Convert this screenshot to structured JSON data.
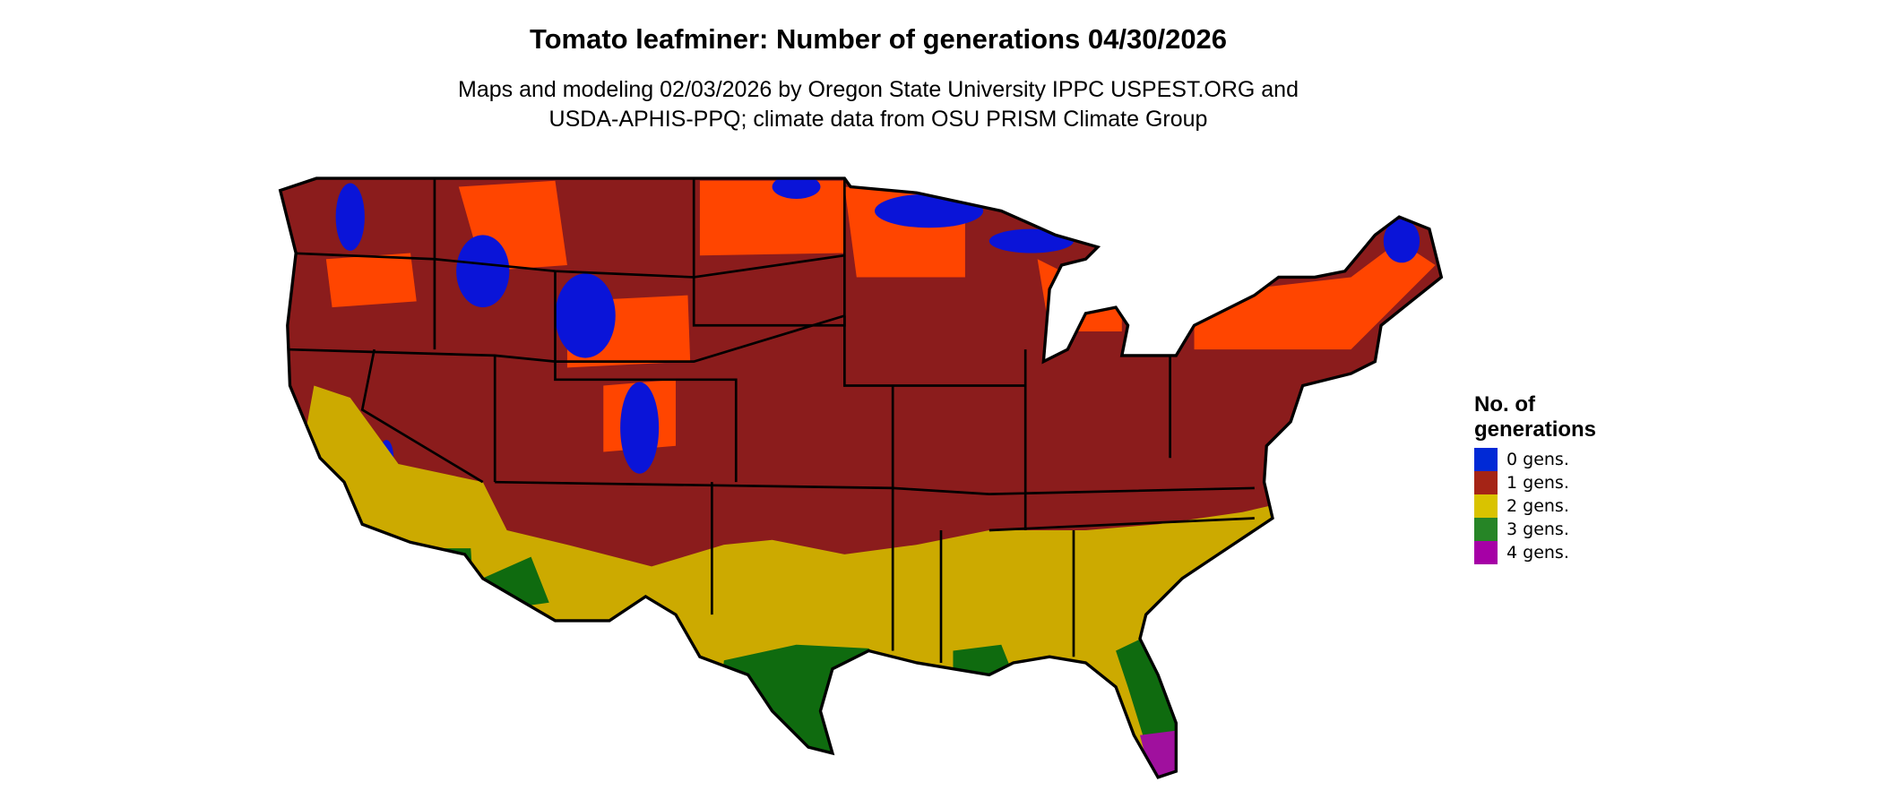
{
  "title": "Tomato leafminer: Number of generations 04/30/2026",
  "subtitle_line1": "Maps and modeling 02/03/2026 by Oregon State University IPPC USPEST.ORG and",
  "subtitle_line2": "USDA-APHIS-PPQ; climate data from OSU PRISM Climate Group",
  "legend": {
    "title_line1": "No. of",
    "title_line2": "generations",
    "items": [
      {
        "label": "0 gens.",
        "color": "#0029d6"
      },
      {
        "label": "1 gens.",
        "color": "#a52416"
      },
      {
        "label": "2 gens.",
        "color": "#d9c300"
      },
      {
        "label": "3 gens.",
        "color": "#268526"
      },
      {
        "label": "4 gens.",
        "color": "#a600a6"
      }
    ]
  },
  "map_colors": {
    "base_1gen": "#8b1c1c",
    "cool_1gen": "#ff4500",
    "zero": "#0a14d8",
    "two": "#ccaa00",
    "three": "#0f6b0f",
    "four": "#a0109e"
  }
}
